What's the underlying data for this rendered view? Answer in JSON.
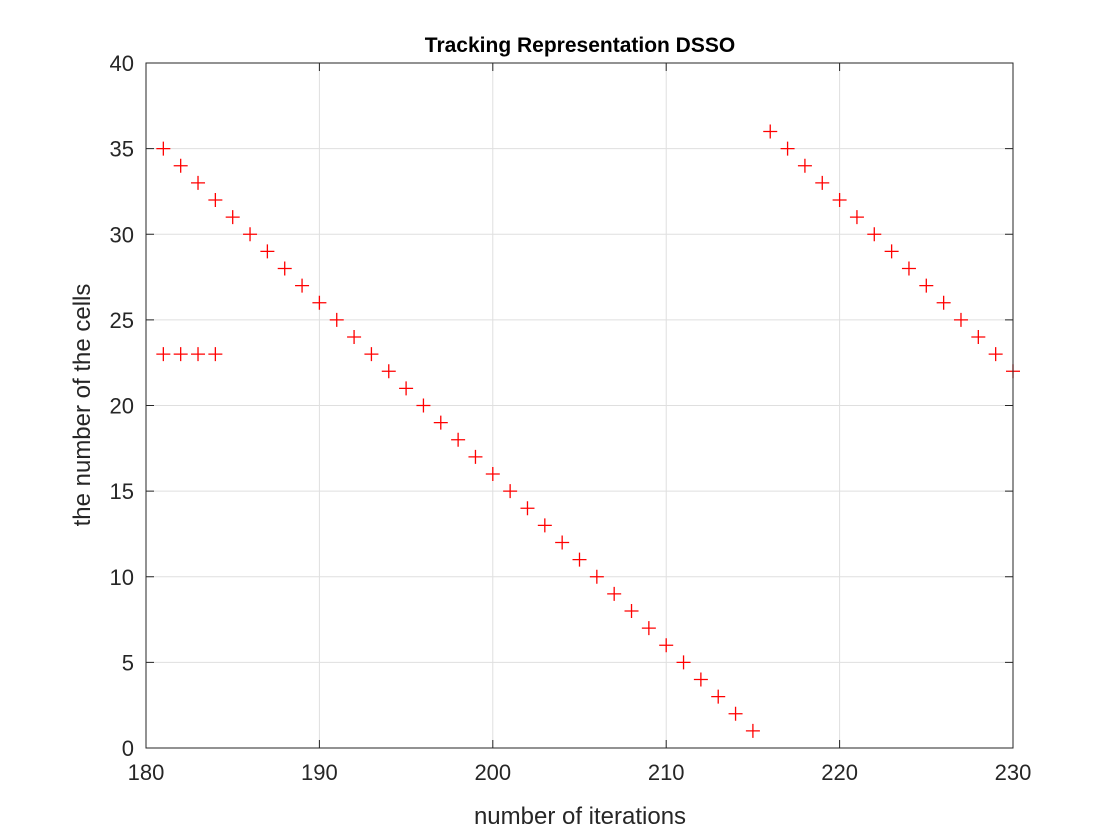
{
  "chart_data": {
    "type": "scatter",
    "title": "Tracking Representation DSSO",
    "xlabel": "number of iterations",
    "ylabel": "the number of the cells",
    "xlim": [
      180,
      230
    ],
    "ylim": [
      0,
      40
    ],
    "xticks": [
      180,
      190,
      200,
      210,
      220,
      230
    ],
    "yticks": [
      0,
      5,
      10,
      15,
      20,
      25,
      30,
      35,
      40
    ],
    "grid": true,
    "legend": "none",
    "marker": "plus",
    "marker_color": "#ff0000",
    "series": [
      {
        "x": [
          181,
          182,
          183,
          184
        ],
        "y": [
          23,
          23,
          23,
          23
        ]
      },
      {
        "x": [
          181,
          182,
          183,
          184,
          185,
          186,
          187,
          188,
          189,
          190,
          191,
          192,
          193,
          194,
          195,
          196,
          197,
          198,
          199,
          200,
          201,
          202,
          203,
          204,
          205,
          206,
          207,
          208,
          209,
          210,
          211,
          212,
          213,
          214,
          215
        ],
        "y": [
          35,
          34,
          33,
          32,
          31,
          30,
          29,
          28,
          27,
          26,
          25,
          24,
          23,
          22,
          21,
          20,
          19,
          18,
          17,
          16,
          15,
          14,
          13,
          12,
          11,
          10,
          9,
          8,
          7,
          6,
          5,
          4,
          3,
          2,
          1
        ]
      },
      {
        "x": [
          216,
          217,
          218,
          219,
          220,
          221,
          222,
          223,
          224,
          225,
          226,
          227,
          228,
          229,
          230
        ],
        "y": [
          36,
          35,
          34,
          33,
          32,
          31,
          30,
          29,
          28,
          27,
          26,
          25,
          24,
          23,
          22
        ]
      }
    ]
  }
}
